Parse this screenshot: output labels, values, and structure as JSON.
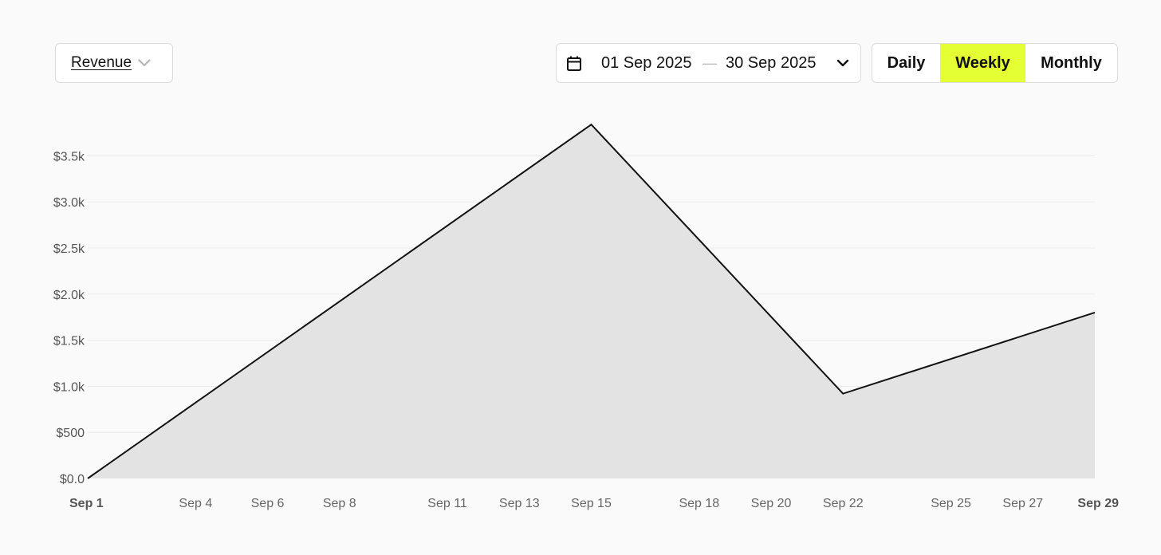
{
  "controls": {
    "metric_label": "Revenue",
    "date_start": "01 Sep 2025",
    "date_separator": "—",
    "date_end": "30 Sep 2025",
    "granularity": [
      {
        "label": "Daily",
        "active": false
      },
      {
        "label": "Weekly",
        "active": true
      },
      {
        "label": "Monthly",
        "active": false
      }
    ],
    "active_color": "#e4ff33"
  },
  "icons": {
    "metric_dropdown": "chevron-down-icon",
    "date_range_leading": "calendar-icon",
    "date_range_trailing": "chevron-down-icon"
  },
  "chart_data": {
    "type": "area",
    "title": "",
    "xlabel": "",
    "ylabel": "",
    "x_ticks": [
      "Sep 1",
      "Sep 4",
      "Sep 6",
      "Sep 8",
      "Sep 11",
      "Sep 13",
      "Sep 15",
      "Sep 18",
      "Sep 20",
      "Sep 22",
      "Sep 25",
      "Sep 27",
      "Sep 29"
    ],
    "x_ticks_bold": [
      "Sep 1",
      "Sep 29"
    ],
    "y_ticks": [
      "$0.0",
      "$500",
      "$1.0k",
      "$1.5k",
      "$2.0k",
      "$2.5k",
      "$3.0k",
      "$3.5k"
    ],
    "ylim": [
      0,
      3850
    ],
    "xlim": [
      "2025-09-01",
      "2025-09-29"
    ],
    "grid": true,
    "series": [
      {
        "x": [
          "2025-09-01",
          "2025-09-15",
          "2025-09-22",
          "2025-09-29"
        ],
        "values": [
          0,
          3840,
          920,
          1800
        ]
      }
    ],
    "line_color": "#111111",
    "fill_color": "#e3e3e3",
    "grid_color": "#ececec"
  }
}
